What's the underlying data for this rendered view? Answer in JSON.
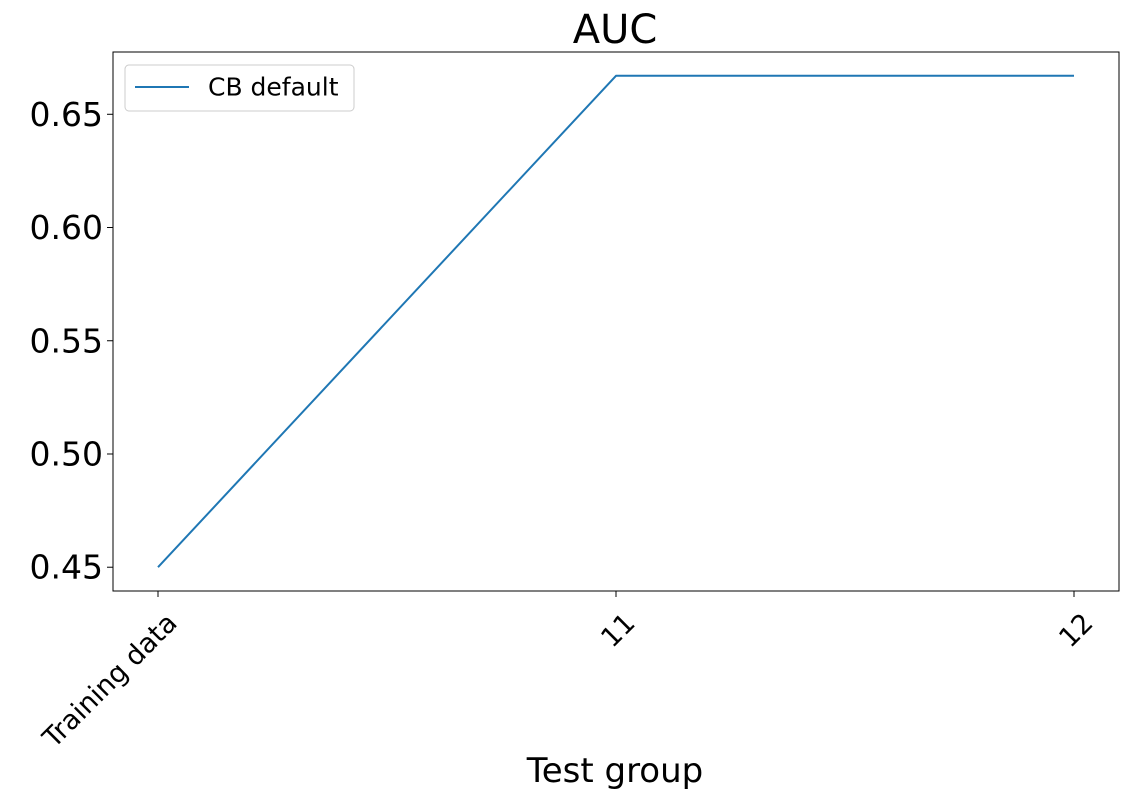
{
  "chart_data": {
    "type": "line",
    "title": "AUC",
    "xlabel": "Test group",
    "ylabel": "",
    "categories": [
      "Training data",
      "11",
      "12"
    ],
    "series": [
      {
        "name": "CB default",
        "values": [
          0.45,
          0.667,
          0.667
        ],
        "color": "#1f77b4"
      }
    ],
    "yticks": [
      0.45,
      0.5,
      0.55,
      0.6,
      0.65
    ],
    "ytick_labels": [
      "0.45",
      "0.50",
      "0.55",
      "0.60",
      "0.65"
    ],
    "ylim": [
      0.4395,
      0.6775
    ],
    "grid": false,
    "legend_position": "top-left"
  }
}
